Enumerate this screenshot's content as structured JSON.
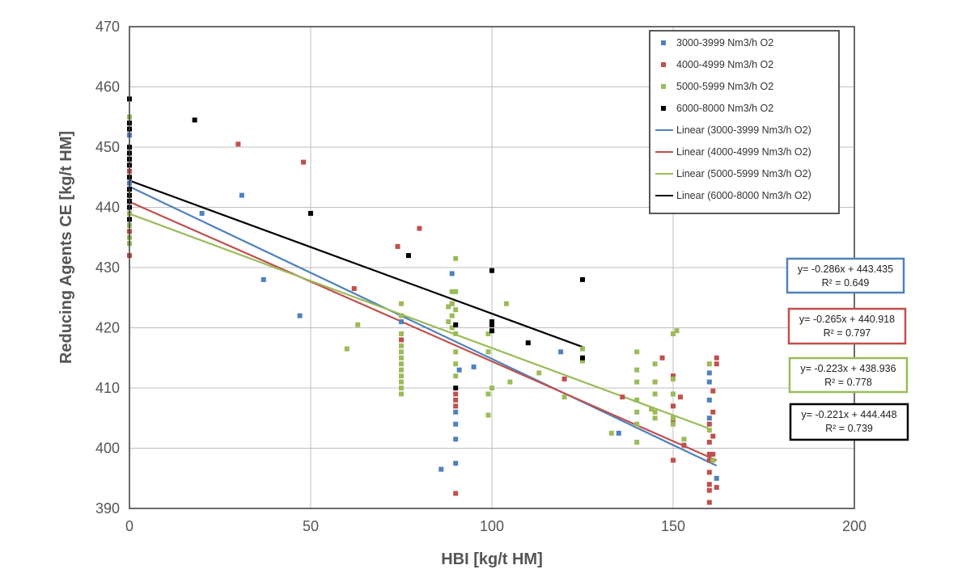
{
  "chart_data": {
    "type": "scatter",
    "xlabel": "HBI [kg/t HM]",
    "ylabel": "Reducing Agents CE [kg/t HM]",
    "xlim": [
      0,
      200
    ],
    "ylim": [
      390,
      470
    ],
    "x_ticks": [
      0,
      50,
      100,
      150,
      200
    ],
    "y_ticks": [
      390,
      400,
      410,
      420,
      430,
      440,
      450,
      460,
      470
    ],
    "grid": true,
    "legend_position": "top-right",
    "series": [
      {
        "name": "3000-3999 Nm3/h O2",
        "color": "#4f81bd",
        "points": [
          [
            0,
            452
          ],
          [
            0,
            444
          ],
          [
            0,
            441
          ],
          [
            0,
            437
          ],
          [
            20,
            439
          ],
          [
            31,
            442
          ],
          [
            37,
            428
          ],
          [
            47,
            422
          ],
          [
            75,
            421
          ],
          [
            86,
            396.5
          ],
          [
            89,
            429
          ],
          [
            90,
            406
          ],
          [
            90,
            404
          ],
          [
            90,
            401.5
          ],
          [
            90,
            397.5
          ],
          [
            91,
            413
          ],
          [
            95,
            413.5
          ],
          [
            119,
            416
          ],
          [
            135,
            402.5
          ],
          [
            150,
            409
          ],
          [
            160,
            412.5
          ],
          [
            160,
            411
          ],
          [
            160,
            408
          ],
          [
            160,
            405
          ],
          [
            162,
            395
          ]
        ],
        "trend_label": "Linear (3000-3999 Nm3/h O2)",
        "trend": {
          "slope": -0.286,
          "intercept": 443.435,
          "x_range": [
            0,
            162
          ]
        },
        "equation": "y= -0.286x + 443.435",
        "r2": "R² = 0.649"
      },
      {
        "name": "4000-4999 Nm3/h O2",
        "color": "#c0504d",
        "points": [
          [
            0,
            453
          ],
          [
            0,
            446
          ],
          [
            0,
            440
          ],
          [
            0,
            436
          ],
          [
            0,
            432
          ],
          [
            30,
            450.5
          ],
          [
            48,
            447.5
          ],
          [
            62,
            426.5
          ],
          [
            74,
            433.5
          ],
          [
            75,
            418
          ],
          [
            80,
            436.5
          ],
          [
            89,
            424
          ],
          [
            90,
            409
          ],
          [
            90,
            408
          ],
          [
            90,
            407
          ],
          [
            90,
            392.5
          ],
          [
            120,
            411.5
          ],
          [
            136,
            408.5
          ],
          [
            145,
            411
          ],
          [
            147,
            415
          ],
          [
            150,
            412
          ],
          [
            150,
            407
          ],
          [
            150,
            404.5
          ],
          [
            150,
            398
          ],
          [
            152,
            408.5
          ],
          [
            153,
            400.5
          ],
          [
            160,
            404
          ],
          [
            160,
            401
          ],
          [
            160,
            399
          ],
          [
            160,
            398
          ],
          [
            160,
            396
          ],
          [
            160,
            394
          ],
          [
            160,
            393
          ],
          [
            160,
            391
          ],
          [
            161,
            409.5
          ],
          [
            161,
            406
          ],
          [
            161,
            402
          ],
          [
            161,
            399
          ],
          [
            162,
            415
          ],
          [
            162,
            414
          ],
          [
            162,
            393.5
          ]
        ],
        "trend_label": "Linear (4000-4999 Nm3/h O2)",
        "trend": {
          "slope": -0.265,
          "intercept": 440.918,
          "x_range": [
            0,
            162
          ]
        },
        "equation": "y= -0.265x + 440.918",
        "r2": "R² = 0.797"
      },
      {
        "name": "5000-5999 Nm3/h O2",
        "color": "#9bbb59",
        "points": [
          [
            0,
            455
          ],
          [
            0,
            448
          ],
          [
            0,
            445
          ],
          [
            0,
            442
          ],
          [
            0,
            439
          ],
          [
            0,
            437
          ],
          [
            0,
            435
          ],
          [
            0,
            434
          ],
          [
            60,
            416.5
          ],
          [
            63,
            420.5
          ],
          [
            75,
            424
          ],
          [
            75,
            422
          ],
          [
            75,
            419
          ],
          [
            75,
            417
          ],
          [
            75,
            416
          ],
          [
            75,
            415
          ],
          [
            75,
            414
          ],
          [
            75,
            413
          ],
          [
            75,
            412
          ],
          [
            75,
            411
          ],
          [
            75,
            410
          ],
          [
            75,
            409
          ],
          [
            88,
            423.5
          ],
          [
            88,
            421
          ],
          [
            89,
            426
          ],
          [
            89,
            424
          ],
          [
            89,
            422
          ],
          [
            89,
            420
          ],
          [
            90,
            431.5
          ],
          [
            90,
            426
          ],
          [
            90,
            423
          ],
          [
            90,
            419
          ],
          [
            90,
            416
          ],
          [
            90,
            414
          ],
          [
            90,
            412
          ],
          [
            99,
            419
          ],
          [
            99,
            416
          ],
          [
            99,
            409
          ],
          [
            99,
            405.5
          ],
          [
            100,
            410
          ],
          [
            100,
            419.5
          ],
          [
            104,
            424
          ],
          [
            105,
            411
          ],
          [
            113,
            412.5
          ],
          [
            120,
            408.5
          ],
          [
            125,
            416.5
          ],
          [
            125,
            414.5
          ],
          [
            133,
            402.5
          ],
          [
            140,
            416
          ],
          [
            140,
            413
          ],
          [
            140,
            411
          ],
          [
            140,
            408
          ],
          [
            140,
            406
          ],
          [
            140,
            404
          ],
          [
            140,
            401
          ],
          [
            144,
            406.5
          ],
          [
            145,
            414
          ],
          [
            145,
            411
          ],
          [
            145,
            409
          ],
          [
            145,
            406
          ],
          [
            145,
            405
          ],
          [
            150,
            419
          ],
          [
            150,
            411.5
          ],
          [
            150,
            409
          ],
          [
            150,
            405
          ],
          [
            150,
            404
          ],
          [
            151,
            419.5
          ],
          [
            153,
            401.5
          ],
          [
            160,
            414
          ],
          [
            160,
            403
          ],
          [
            161,
            398
          ]
        ],
        "trend_label": "Linear (5000-5999 Nm3/h O2)",
        "trend": {
          "slope": -0.223,
          "intercept": 438.936,
          "x_range": [
            0,
            160
          ]
        },
        "equation": "y= -0.223x + 438.936",
        "r2": "R² = 0.778"
      },
      {
        "name": "6000-8000 Nm3/h O2",
        "color": "#000000",
        "points": [
          [
            0,
            458
          ],
          [
            0,
            454
          ],
          [
            0,
            453
          ],
          [
            0,
            450
          ],
          [
            0,
            449
          ],
          [
            0,
            448
          ],
          [
            0,
            447
          ],
          [
            0,
            445
          ],
          [
            0,
            443
          ],
          [
            0,
            442
          ],
          [
            0,
            441
          ],
          [
            0,
            440
          ],
          [
            0,
            438
          ],
          [
            18,
            454.5
          ],
          [
            50,
            439
          ],
          [
            77,
            432
          ],
          [
            90,
            420.5
          ],
          [
            90,
            410
          ],
          [
            100,
            429.5
          ],
          [
            100,
            421
          ],
          [
            100,
            420.5
          ],
          [
            100,
            419.5
          ],
          [
            110,
            417.5
          ],
          [
            125,
            428
          ],
          [
            125,
            415
          ]
        ],
        "trend_label": "Linear (6000-8000 Nm3/h O2)",
        "trend": {
          "slope": -0.221,
          "intercept": 444.448,
          "x_range": [
            0,
            125
          ]
        },
        "equation": "y= -0.221x + 444.448",
        "r2": "R² = 0.739"
      }
    ]
  }
}
